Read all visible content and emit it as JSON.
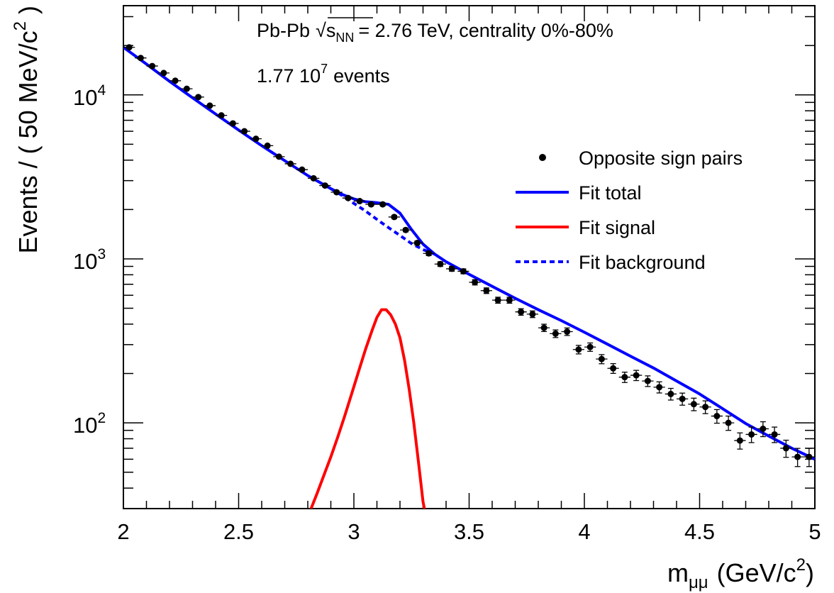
{
  "chart_data": {
    "type": "scatter",
    "title": "",
    "annotations": {
      "system": "Pb-Pb",
      "sqrt": "√",
      "s": "s",
      "nn": "NN",
      "energy": "= 2.76 TeV, centrality 0%-80%",
      "events_mantissa": "1.77 10",
      "events_exp": "7",
      "events_word": "events"
    },
    "xlabel": {
      "main": "m",
      "sub": "μμ",
      "unit_open": "(GeV/c",
      "unit_exp": "2",
      "unit_close": ")"
    },
    "ylabel": {
      "main": "Events / (  50 MeV/c",
      "exp": "2",
      "close": " )"
    },
    "xlim": [
      2,
      5
    ],
    "ylim": [
      30,
      35000
    ],
    "yscale": "log",
    "xticks": [
      "2",
      "2.5",
      "3",
      "3.5",
      "4",
      "4.5",
      "5"
    ],
    "yticks": [
      {
        "base": "10",
        "exp": "2",
        "value": 100
      },
      {
        "base": "10",
        "exp": "3",
        "value": 1000
      },
      {
        "base": "10",
        "exp": "4",
        "value": 10000
      }
    ],
    "bin_width": 0.05,
    "legend": {
      "placement": "right",
      "entries": [
        {
          "label": "Opposite sign pairs",
          "marker": "dot",
          "color": "#000000"
        },
        {
          "label": "Fit total",
          "marker": "line",
          "color": "#0000ff"
        },
        {
          "label": "Fit signal",
          "marker": "line",
          "color": "#ff0000"
        },
        {
          "label": "Fit background",
          "marker": "dashed",
          "color": "#0000ff"
        }
      ]
    },
    "points": {
      "x": [
        2.025,
        2.075,
        2.125,
        2.175,
        2.225,
        2.275,
        2.325,
        2.375,
        2.425,
        2.475,
        2.525,
        2.575,
        2.625,
        2.675,
        2.725,
        2.775,
        2.825,
        2.875,
        2.925,
        2.975,
        3.025,
        3.075,
        3.125,
        3.175,
        3.225,
        3.275,
        3.325,
        3.375,
        3.425,
        3.475,
        3.525,
        3.575,
        3.625,
        3.675,
        3.725,
        3.775,
        3.825,
        3.875,
        3.925,
        3.975,
        4.025,
        4.075,
        4.125,
        4.175,
        4.225,
        4.275,
        4.325,
        4.375,
        4.425,
        4.475,
        4.525,
        4.575,
        4.625,
        4.675,
        4.725,
        4.775,
        4.825,
        4.875,
        4.925,
        4.975
      ],
      "y": [
        19500,
        16800,
        15000,
        13600,
        12200,
        10900,
        9700,
        8600,
        7500,
        6700,
        6000,
        5400,
        4900,
        4200,
        3800,
        3500,
        3100,
        2800,
        2550,
        2350,
        2250,
        2150,
        2150,
        1800,
        1500,
        1250,
        1080,
        930,
        870,
        840,
        720,
        640,
        560,
        560,
        475,
        460,
        380,
        350,
        360,
        280,
        290,
        245,
        215,
        190,
        195,
        180,
        165,
        150,
        140,
        130,
        125,
        110,
        100,
        78,
        85,
        92,
        85,
        70,
        62,
        62
      ],
      "color": "#000000"
    },
    "series": [
      {
        "name": "Fit total",
        "color": "#0000ff",
        "style": "solid",
        "x": [
          2.0,
          2.1,
          2.2,
          2.3,
          2.4,
          2.5,
          2.6,
          2.7,
          2.8,
          2.9,
          2.95,
          3.0,
          3.05,
          3.1,
          3.15,
          3.2,
          3.25,
          3.3,
          3.35,
          3.4,
          3.5,
          3.6,
          3.7,
          3.8,
          3.9,
          4.0,
          4.1,
          4.2,
          4.3,
          4.4,
          4.5,
          4.6,
          4.7,
          4.8,
          4.9,
          5.0
        ],
        "y": [
          19500,
          15400,
          12100,
          9600,
          7650,
          6100,
          4900,
          3970,
          3220,
          2680,
          2470,
          2320,
          2230,
          2200,
          2150,
          1900,
          1510,
          1230,
          1070,
          960,
          805,
          680,
          575,
          490,
          420,
          357,
          302,
          255,
          216,
          180,
          150,
          122,
          99,
          83,
          70,
          60
        ]
      },
      {
        "name": "Fit signal",
        "color": "#ff0000",
        "style": "solid",
        "x": [
          2.81,
          2.84,
          2.87,
          2.9,
          2.93,
          2.96,
          2.99,
          3.02,
          3.05,
          3.08,
          3.1,
          3.12,
          3.14,
          3.16,
          3.18,
          3.2,
          3.22,
          3.24,
          3.26,
          3.28,
          3.3,
          3.31
        ],
        "y": [
          29,
          37,
          48,
          62,
          82,
          110,
          150,
          205,
          280,
          370,
          440,
          490,
          490,
          455,
          400,
          330,
          240,
          160,
          100,
          58,
          33,
          28
        ]
      },
      {
        "name": "Fit background",
        "color": "#0000ff",
        "style": "dashed",
        "x": [
          2.9,
          2.95,
          3.0,
          3.05,
          3.1,
          3.15,
          3.2,
          3.25,
          3.3,
          3.35
        ],
        "y": [
          2680,
          2430,
          2180,
          1960,
          1740,
          1550,
          1390,
          1240,
          1140,
          1070
        ]
      }
    ]
  }
}
